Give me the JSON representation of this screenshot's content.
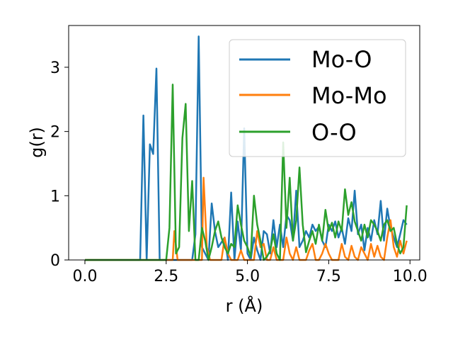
{
  "chart_data": {
    "type": "line",
    "xlabel": "r (Å)",
    "ylabel": "g(r)",
    "xlim": [
      -0.5,
      10.3
    ],
    "ylim": [
      0,
      3.65
    ],
    "xticks": [
      0.0,
      2.5,
      5.0,
      7.5,
      10.0
    ],
    "xtick_labels": [
      "0.0",
      "2.5",
      "5.0",
      "7.5",
      "10.0"
    ],
    "yticks": [
      0,
      1,
      2,
      3
    ],
    "ytick_labels": [
      "0",
      "1",
      "2",
      "3"
    ],
    "grid": false,
    "legend_position": "top-right",
    "series": [
      {
        "name": "Mo-O",
        "color": "#1f77b4",
        "points": [
          [
            0,
            0
          ],
          [
            1.6,
            0
          ],
          [
            1.7,
            0
          ],
          [
            1.8,
            2.25
          ],
          [
            1.9,
            0
          ],
          [
            2.0,
            1.8
          ],
          [
            2.1,
            1.65
          ],
          [
            2.2,
            2.98
          ],
          [
            2.3,
            0
          ],
          [
            2.4,
            0
          ],
          [
            3.2,
            0
          ],
          [
            3.3,
            0
          ],
          [
            3.4,
            0.4
          ],
          [
            3.5,
            3.48
          ],
          [
            3.6,
            0.2
          ],
          [
            3.8,
            0
          ],
          [
            3.9,
            0.88
          ],
          [
            4.0,
            0.45
          ],
          [
            4.1,
            0.2
          ],
          [
            4.3,
            0.35
          ],
          [
            4.4,
            0
          ],
          [
            4.5,
            1.05
          ],
          [
            4.6,
            0
          ],
          [
            4.7,
            0.6
          ],
          [
            4.8,
            0.15
          ],
          [
            4.9,
            2.05
          ],
          [
            5.0,
            0.1
          ],
          [
            5.1,
            0
          ],
          [
            5.2,
            0.35
          ],
          [
            5.3,
            0.15
          ],
          [
            5.4,
            0
          ],
          [
            5.5,
            0.45
          ],
          [
            5.6,
            0.4
          ],
          [
            5.7,
            0.1
          ],
          [
            5.8,
            0.62
          ],
          [
            5.9,
            0.2
          ],
          [
            6.0,
            0.55
          ],
          [
            6.1,
            0.2
          ],
          [
            6.2,
            0.7
          ],
          [
            6.3,
            0.62
          ],
          [
            6.4,
            0.3
          ],
          [
            6.5,
            1.08
          ],
          [
            6.6,
            0.2
          ],
          [
            6.7,
            0.3
          ],
          [
            6.8,
            0.45
          ],
          [
            6.9,
            0.35
          ],
          [
            7.0,
            0.55
          ],
          [
            7.1,
            0.45
          ],
          [
            7.2,
            0.52
          ],
          [
            7.3,
            0.3
          ],
          [
            7.4,
            0.2
          ],
          [
            7.5,
            0.55
          ],
          [
            7.6,
            0.45
          ],
          [
            7.7,
            0.6
          ],
          [
            7.8,
            0.35
          ],
          [
            7.9,
            0.5
          ],
          [
            8.0,
            0.25
          ],
          [
            8.1,
            0.65
          ],
          [
            8.2,
            0.45
          ],
          [
            8.3,
            1.08
          ],
          [
            8.4,
            0.4
          ],
          [
            8.5,
            0.55
          ],
          [
            8.6,
            0.15
          ],
          [
            8.7,
            0.5
          ],
          [
            8.8,
            0.3
          ],
          [
            8.9,
            0.62
          ],
          [
            9.0,
            0.4
          ],
          [
            9.1,
            0.92
          ],
          [
            9.2,
            0.3
          ],
          [
            9.3,
            0.8
          ],
          [
            9.4,
            0.5
          ],
          [
            9.5,
            0.35
          ],
          [
            9.6,
            0.2
          ],
          [
            9.7,
            0.4
          ],
          [
            9.8,
            0.62
          ],
          [
            9.9,
            0.55
          ]
        ]
      },
      {
        "name": "Mo-Mo",
        "color": "#ff7f0e",
        "points": [
          [
            0,
            0
          ],
          [
            2.6,
            0
          ],
          [
            2.7,
            0
          ],
          [
            2.75,
            0.45
          ],
          [
            2.85,
            0
          ],
          [
            3.5,
            0
          ],
          [
            3.6,
            0
          ],
          [
            3.65,
            1.28
          ],
          [
            3.75,
            0.2
          ],
          [
            3.85,
            0
          ],
          [
            4.1,
            0
          ],
          [
            4.2,
            0
          ],
          [
            4.3,
            0.35
          ],
          [
            4.4,
            0.1
          ],
          [
            4.5,
            0
          ],
          [
            4.7,
            0
          ],
          [
            4.8,
            0.15
          ],
          [
            4.9,
            0
          ],
          [
            5.2,
            0
          ],
          [
            5.3,
            0.45
          ],
          [
            5.4,
            0.2
          ],
          [
            5.5,
            0.25
          ],
          [
            5.6,
            0
          ],
          [
            5.7,
            0
          ],
          [
            5.8,
            0.2
          ],
          [
            5.9,
            0
          ],
          [
            6.1,
            0
          ],
          [
            6.2,
            0.35
          ],
          [
            6.3,
            0.1
          ],
          [
            6.4,
            0
          ],
          [
            6.5,
            0.2
          ],
          [
            6.6,
            0
          ],
          [
            6.8,
            0
          ],
          [
            6.9,
            0.15
          ],
          [
            7.0,
            0.25
          ],
          [
            7.1,
            0
          ],
          [
            7.2,
            0
          ],
          [
            7.3,
            0.1
          ],
          [
            7.4,
            0.25
          ],
          [
            7.5,
            0.1
          ],
          [
            7.6,
            0
          ],
          [
            7.8,
            0
          ],
          [
            7.9,
            0.25
          ],
          [
            8.0,
            0.05
          ],
          [
            8.1,
            0
          ],
          [
            8.2,
            0.22
          ],
          [
            8.3,
            0.05
          ],
          [
            8.4,
            0
          ],
          [
            8.5,
            0.2
          ],
          [
            8.6,
            0.1
          ],
          [
            8.7,
            0
          ],
          [
            8.8,
            0.25
          ],
          [
            8.9,
            0.05
          ],
          [
            9.0,
            0.22
          ],
          [
            9.1,
            0.05
          ],
          [
            9.2,
            0
          ],
          [
            9.3,
            0.35
          ],
          [
            9.4,
            0.62
          ],
          [
            9.5,
            0.2
          ],
          [
            9.6,
            0.05
          ],
          [
            9.7,
            0.3
          ],
          [
            9.8,
            0.1
          ],
          [
            9.9,
            0.3
          ]
        ]
      },
      {
        "name": "O-O",
        "color": "#2ca02c",
        "points": [
          [
            0,
            0
          ],
          [
            2.4,
            0
          ],
          [
            2.5,
            0
          ],
          [
            2.6,
            0.5
          ],
          [
            2.7,
            2.73
          ],
          [
            2.8,
            0.1
          ],
          [
            2.9,
            0.2
          ],
          [
            3.0,
            1.9
          ],
          [
            3.1,
            2.43
          ],
          [
            3.2,
            0.45
          ],
          [
            3.3,
            1.23
          ],
          [
            3.4,
            0
          ],
          [
            3.5,
            0
          ],
          [
            3.6,
            0.5
          ],
          [
            3.7,
            0.3
          ],
          [
            3.8,
            0
          ],
          [
            3.9,
            0.2
          ],
          [
            4.0,
            0.45
          ],
          [
            4.1,
            0.6
          ],
          [
            4.2,
            0.35
          ],
          [
            4.3,
            0.2
          ],
          [
            4.4,
            0.1
          ],
          [
            4.5,
            0.25
          ],
          [
            4.6,
            0.2
          ],
          [
            4.7,
            0.85
          ],
          [
            4.8,
            0.55
          ],
          [
            4.9,
            0.3
          ],
          [
            5.0,
            0.2
          ],
          [
            5.1,
            0.05
          ],
          [
            5.2,
            1.0
          ],
          [
            5.3,
            0.55
          ],
          [
            5.4,
            0.3
          ],
          [
            5.5,
            0
          ],
          [
            5.6,
            0.05
          ],
          [
            5.7,
            0.15
          ],
          [
            5.8,
            0.4
          ],
          [
            5.9,
            0.1
          ],
          [
            6.0,
            0.0
          ],
          [
            6.1,
            1.83
          ],
          [
            6.2,
            0.5
          ],
          [
            6.3,
            1.28
          ],
          [
            6.4,
            0.3
          ],
          [
            6.5,
            0.62
          ],
          [
            6.6,
            1.44
          ],
          [
            6.7,
            0.55
          ],
          [
            6.8,
            0.12
          ],
          [
            6.9,
            0.3
          ],
          [
            7.0,
            0.45
          ],
          [
            7.1,
            0.25
          ],
          [
            7.2,
            0.55
          ],
          [
            7.3,
            0.3
          ],
          [
            7.4,
            0.78
          ],
          [
            7.5,
            0.45
          ],
          [
            7.6,
            0.58
          ],
          [
            7.7,
            0.35
          ],
          [
            7.8,
            0.6
          ],
          [
            7.9,
            0.45
          ],
          [
            8.0,
            1.1
          ],
          [
            8.1,
            0.7
          ],
          [
            8.2,
            0.9
          ],
          [
            8.3,
            0.6
          ],
          [
            8.4,
            0.45
          ],
          [
            8.5,
            0.3
          ],
          [
            8.6,
            0.55
          ],
          [
            8.7,
            0.35
          ],
          [
            8.8,
            0.62
          ],
          [
            8.9,
            0.55
          ],
          [
            9.0,
            0.45
          ],
          [
            9.1,
            0.3
          ],
          [
            9.2,
            0.55
          ],
          [
            9.3,
            0.62
          ],
          [
            9.4,
            0.45
          ],
          [
            9.5,
            0.5
          ],
          [
            9.6,
            0.25
          ],
          [
            9.7,
            0.1
          ],
          [
            9.8,
            0.2
          ],
          [
            9.9,
            0.85
          ]
        ]
      }
    ]
  }
}
